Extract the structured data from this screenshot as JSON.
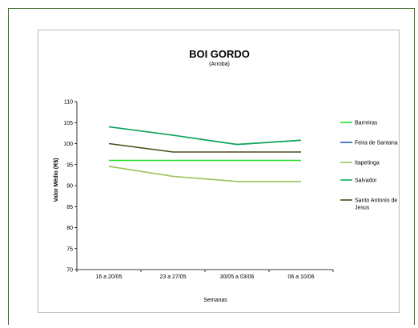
{
  "chart_data": {
    "type": "line",
    "title": "BOI GORDO",
    "subtitle": "(Arroba)",
    "xlabel": "Semanas",
    "ylabel": "Valor Médio (R$)",
    "categories": [
      "16 a 20/05",
      "23 a 27/05",
      "30/05 a 03/06",
      "06 a 10/06"
    ],
    "ylim": [
      70,
      110
    ],
    "yticks": [
      70,
      75,
      80,
      85,
      90,
      95,
      100,
      105,
      110
    ],
    "grid": false,
    "legend_position": "right",
    "series": [
      {
        "name": "Barreiras",
        "color": "#22dd22",
        "values": [
          96,
          96,
          96,
          96
        ]
      },
      {
        "name": "Feira de Santana",
        "color": "#1f5fbf",
        "values": [
          104,
          102,
          99.8,
          100.8
        ]
      },
      {
        "name": "Itapetinga",
        "color": "#9bc45a",
        "values": [
          94.6,
          92.2,
          91,
          91
        ]
      },
      {
        "name": "Salvador",
        "color": "#11aa55",
        "values": [
          104,
          102,
          99.8,
          100.8
        ]
      },
      {
        "name": "Santo Antonio de Jesus",
        "color": "#4a4a1a",
        "values": [
          100,
          98,
          98,
          98
        ]
      }
    ]
  }
}
